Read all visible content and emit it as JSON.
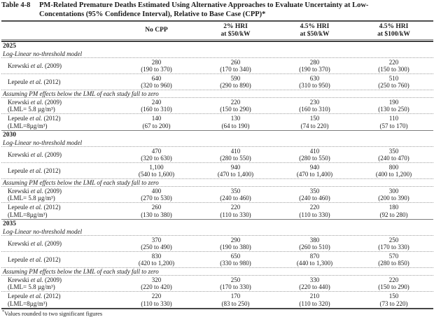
{
  "table": {
    "label": "Table 4-8",
    "title_line1": "PM-Related Premature Deaths Estimated Using Alternative Approaches to Evaluate Uncertainty at Low-",
    "title_line2": "Concentations (95% Confidence Interval), Relative to Base Case (CPP)*",
    "columns": [
      {
        "line1": "No CPP",
        "line2": ""
      },
      {
        "line1": "2% HRI",
        "line2": "at $50/kW"
      },
      {
        "line1": "4.5% HRI",
        "line2": "at $50/kW"
      },
      {
        "line1": "4.5% HRI",
        "line2": "at $100/kW"
      }
    ],
    "sections": [
      {
        "year": "2025",
        "groups": [
          {
            "heading": "Log-Linear no-threshold model",
            "rows": [
              {
                "study_pre": "Krewski ",
                "study_italic": "et al.",
                "study_post": " (2009)",
                "values": [
                  "280",
                  "260",
                  "280",
                  "220"
                ],
                "ci": [
                  "(190 to 370)",
                  "(170 to 340)",
                  "(190 to 370)",
                  "(150 to 300)"
                ]
              },
              {
                "study_pre": "Lepeule ",
                "study_italic": "et al.",
                "study_post": " (2012)",
                "values": [
                  "640",
                  "590",
                  "630",
                  "510"
                ],
                "ci": [
                  "(320 to 960)",
                  "(290 to 890)",
                  "(310 to 950)",
                  "(250 to 760)"
                ]
              }
            ]
          },
          {
            "heading": "Assuming PM effects below the LML of each study fall to zero",
            "rows": [
              {
                "study_pre": "Krewski ",
                "study_italic": "et al.",
                "study_post": " (2009)",
                "study2": "(LML= 5.8 µg/m³)",
                "values": [
                  "240",
                  "220",
                  "230",
                  "190"
                ],
                "ci": [
                  "(160 to 310)",
                  "(150 to 290)",
                  "(160 to 310)",
                  "(130 to 250)"
                ]
              },
              {
                "study_pre": "Lepeule ",
                "study_italic": "et al.",
                "study_post": " (2012)",
                "study2": "(LML=8µg/m³)",
                "values": [
                  "140",
                  "130",
                  "150",
                  "110"
                ],
                "ci": [
                  "(67 to 200)",
                  "(64 to 190)",
                  "(74 to 220)",
                  "(57 to 170)"
                ]
              }
            ]
          }
        ]
      },
      {
        "year": "2030",
        "groups": [
          {
            "heading": "Log-Linear no-threshold model",
            "rows": [
              {
                "study_pre": "Krewski ",
                "study_italic": "et al.",
                "study_post": " (2009)",
                "values": [
                  "470",
                  "410",
                  "410",
                  "350"
                ],
                "ci": [
                  "(320 to 630)",
                  "(280 to 550)",
                  "(280 to 550)",
                  "(240 to 470)"
                ]
              },
              {
                "study_pre": "Lepeule ",
                "study_italic": "et al.",
                "study_post": " (2012)",
                "values": [
                  "1,100",
                  "940",
                  "940",
                  "800"
                ],
                "ci": [
                  "(540 to 1,600)",
                  "(470 to 1,400)",
                  "(470 to 1,400)",
                  "(400 to 1,200)"
                ]
              }
            ]
          },
          {
            "heading": "Assuming PM effects below the LML of each study fall to zero",
            "rows": [
              {
                "study_pre": "Krewski ",
                "study_italic": "et al.",
                "study_post": " (2009)",
                "study2": "(LML= 5.8 µg/m³)",
                "values": [
                  "400",
                  "350",
                  "350",
                  "300"
                ],
                "ci": [
                  "(270 to 530)",
                  "(240 to 460)",
                  "(240 to 460)",
                  "(200 to 390)"
                ]
              },
              {
                "study_pre": "Lepeule ",
                "study_italic": "et al.",
                "study_post": " (2012)",
                "study2": "(LML=8µg/m³)",
                "values": [
                  "260",
                  "220",
                  "220",
                  "180"
                ],
                "ci": [
                  "(130 to 380)",
                  "(110 to 330)",
                  "(110 to 330)",
                  "(92 to 280)"
                ]
              }
            ]
          }
        ]
      },
      {
        "year": "2035",
        "groups": [
          {
            "heading": "Log-Linear no-threshold model",
            "rows": [
              {
                "study_pre": "Krewski ",
                "study_italic": "et al.",
                "study_post": " (2009)",
                "values": [
                  "370",
                  "290",
                  "380",
                  "250"
                ],
                "ci": [
                  "(250 to 490)",
                  "(190 to 380)",
                  "(260 to 510)",
                  "(170 to 330)"
                ]
              },
              {
                "study_pre": "Lepeule ",
                "study_italic": "et al.",
                "study_post": " (2012)",
                "values": [
                  "830",
                  "650",
                  "870",
                  "570"
                ],
                "ci": [
                  "(420 to 1,200)",
                  "(330 to 980)",
                  "(440 to 1,300)",
                  "(280 to 850)"
                ]
              }
            ]
          },
          {
            "heading": "Assuming PM effects below the LML of each study fall to zero",
            "rows": [
              {
                "study_pre": "Krewski ",
                "study_italic": "et al.",
                "study_post": " (2009)",
                "study2": "(LML= 5.8 µg/m³)",
                "values": [
                  "320",
                  "250",
                  "330",
                  "220"
                ],
                "ci": [
                  "(220 to 420)",
                  "(170 to 330)",
                  "(220 to 440)",
                  "(150 to 290)"
                ]
              },
              {
                "study_pre": "Lepeule ",
                "study_italic": "et al.",
                "study_post": " (2012)",
                "study2": "(LML=8µg/m³)",
                "values": [
                  "220",
                  "170",
                  "210",
                  "150"
                ],
                "ci": [
                  "(110 to 330)",
                  "(83 to 250)",
                  "(110 to 320)",
                  "(73 to 220)"
                ]
              }
            ]
          }
        ]
      }
    ],
    "footnote_marker": "*",
    "footnote": "Values rounded to two significant figures"
  }
}
